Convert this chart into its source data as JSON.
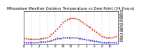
{
  "title": "Milwaukee Weather Outdoor Temperature vs Dew Point (24 Hours)",
  "title_fontsize": 4.0,
  "temp_color": "#cc0000",
  "dew_color": "#0000cc",
  "background_color": "#ffffff",
  "grid_color": "#aaaaaa",
  "ylabel_fontsize": 3.5,
  "xlabel_fontsize": 3.2,
  "ylim": [
    20,
    70
  ],
  "yticks": [
    25,
    30,
    35,
    40,
    45,
    50,
    55,
    60,
    65,
    70
  ],
  "time_hours": [
    0,
    0.5,
    1,
    1.5,
    2,
    2.5,
    3,
    3.5,
    4,
    4.5,
    5,
    5.5,
    6,
    6.5,
    7,
    7.5,
    8,
    8.5,
    9,
    9.5,
    10,
    10.5,
    11,
    11.5,
    12,
    12.5,
    13,
    13.5,
    14,
    14.5,
    15,
    15.5,
    16,
    16.5,
    17,
    17.5,
    18,
    18.5,
    19,
    19.5,
    20,
    20.5,
    21,
    21.5,
    22,
    22.5,
    23,
    23.5
  ],
  "temp_values": [
    28,
    28,
    27,
    27,
    27,
    27,
    27,
    27,
    27,
    28,
    28,
    29,
    30,
    32,
    35,
    37,
    40,
    43,
    47,
    50,
    53,
    55,
    57,
    58,
    59,
    59,
    59,
    58,
    57,
    55,
    53,
    51,
    49,
    47,
    45,
    42,
    40,
    38,
    36,
    34,
    32,
    31,
    30,
    29,
    29,
    30,
    31,
    32
  ],
  "dew_values": [
    22,
    22,
    22,
    22,
    22,
    22,
    22,
    22,
    23,
    23,
    23,
    23,
    24,
    24,
    25,
    26,
    27,
    28,
    28,
    28,
    29,
    29,
    30,
    30,
    30,
    30,
    29,
    29,
    28,
    28,
    27,
    27,
    26,
    26,
    25,
    25,
    24,
    24,
    23,
    23,
    22,
    22,
    22,
    22,
    22,
    22,
    22,
    22
  ],
  "xtick_positions": [
    0,
    2,
    4,
    6,
    8,
    10,
    12,
    14,
    16,
    18,
    20,
    22
  ],
  "xtick_labels": [
    "12",
    "2",
    "4",
    "6",
    "8",
    "10",
    "12",
    "2",
    "4",
    "6",
    "8",
    "10"
  ],
  "vgrid_positions": [
    0,
    2,
    4,
    6,
    8,
    10,
    12,
    14,
    16,
    18,
    20,
    22
  ]
}
